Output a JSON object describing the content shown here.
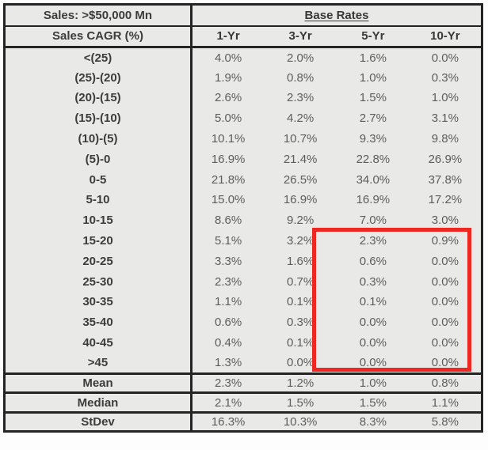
{
  "table": {
    "title_cell": "Sales: >$50,000 Mn",
    "group_header": "Base Rates",
    "row_header": "Sales CAGR (%)",
    "columns": [
      "1-Yr",
      "3-Yr",
      "5-Yr",
      "10-Yr"
    ],
    "rows": [
      {
        "label": "<(25)",
        "values": [
          "4.0%",
          "2.0%",
          "1.6%",
          "0.0%"
        ]
      },
      {
        "label": "(25)-(20)",
        "values": [
          "1.9%",
          "0.8%",
          "1.0%",
          "0.3%"
        ]
      },
      {
        "label": "(20)-(15)",
        "values": [
          "2.6%",
          "2.3%",
          "1.5%",
          "1.0%"
        ]
      },
      {
        "label": "(15)-(10)",
        "values": [
          "5.0%",
          "4.2%",
          "2.7%",
          "3.1%"
        ]
      },
      {
        "label": "(10)-(5)",
        "values": [
          "10.1%",
          "10.7%",
          "9.3%",
          "9.8%"
        ]
      },
      {
        "label": "(5)-0",
        "values": [
          "16.9%",
          "21.4%",
          "22.8%",
          "26.9%"
        ]
      },
      {
        "label": "0-5",
        "values": [
          "21.8%",
          "26.5%",
          "34.0%",
          "37.8%"
        ]
      },
      {
        "label": "5-10",
        "values": [
          "15.0%",
          "16.9%",
          "16.9%",
          "17.2%"
        ]
      },
      {
        "label": "10-15",
        "values": [
          "8.6%",
          "9.2%",
          "7.0%",
          "3.0%"
        ]
      },
      {
        "label": "15-20",
        "values": [
          "5.1%",
          "3.2%",
          "2.3%",
          "0.9%"
        ]
      },
      {
        "label": "20-25",
        "values": [
          "3.3%",
          "1.6%",
          "0.6%",
          "0.0%"
        ]
      },
      {
        "label": "25-30",
        "values": [
          "2.3%",
          "0.7%",
          "0.3%",
          "0.0%"
        ]
      },
      {
        "label": "30-35",
        "values": [
          "1.1%",
          "0.1%",
          "0.1%",
          "0.0%"
        ]
      },
      {
        "label": "35-40",
        "values": [
          "0.6%",
          "0.3%",
          "0.0%",
          "0.0%"
        ]
      },
      {
        "label": "40-45",
        "values": [
          "0.4%",
          "0.1%",
          "0.0%",
          "0.0%"
        ]
      },
      {
        "label": ">45",
        "values": [
          "1.3%",
          "0.0%",
          "0.0%",
          "0.0%"
        ]
      }
    ],
    "summary_rows": [
      {
        "label": "Mean",
        "values": [
          "2.3%",
          "1.2%",
          "1.0%",
          "0.8%"
        ]
      },
      {
        "label": "Median",
        "values": [
          "2.1%",
          "1.5%",
          "1.5%",
          "1.1%"
        ]
      },
      {
        "label": "StDev",
        "values": [
          "16.3%",
          "10.3%",
          "8.3%",
          "5.8%"
        ]
      }
    ]
  },
  "annotation": {
    "shape": "red-box",
    "color": "#ee2821",
    "col_start": "5-Yr",
    "col_end": "10-Yr",
    "row_start": "15-20",
    "row_end": ">45"
  },
  "colors": {
    "cell_background": "#e9e9e7",
    "table_border": "#242424",
    "label_text": "#3c3c3c",
    "value_text": "#5d5d5d",
    "highlight_red": "#ee2821"
  }
}
